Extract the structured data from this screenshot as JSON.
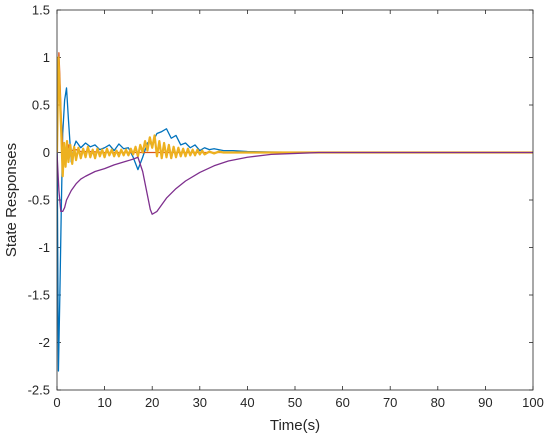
{
  "chart_data": {
    "type": "line",
    "title": "",
    "xlabel": "Time(s)",
    "ylabel": "State Responses",
    "xlim": [
      0,
      100
    ],
    "ylim": [
      -2.5,
      1.5
    ],
    "xticks": [
      0,
      10,
      20,
      30,
      40,
      50,
      60,
      70,
      80,
      90,
      100
    ],
    "yticks": [
      -2.5,
      -2,
      -1.5,
      -1,
      -0.5,
      0,
      0.5,
      1,
      1.5
    ],
    "xtick_labels": [
      "0",
      "10",
      "20",
      "30",
      "40",
      "50",
      "60",
      "70",
      "80",
      "90",
      "100"
    ],
    "ytick_labels": [
      "-2.5",
      "-2",
      "-1.5",
      "-1",
      "-0.5",
      "0",
      "0.5",
      "1",
      "1.5"
    ],
    "grid": false,
    "legend": "none",
    "series": [
      {
        "color": "#0072BD",
        "x": [
          0,
          0.3,
          0.6,
          0.9,
          1.2,
          1.6,
          2.0,
          2.4,
          3.0,
          3.5,
          4.0,
          5.0,
          6.0,
          7.0,
          8.0,
          9.0,
          10.0,
          11.0,
          12.0,
          13.0,
          14.0,
          15.0,
          16.0,
          17.0,
          18.0,
          19.0,
          19.5,
          20.0,
          20.5,
          21.0,
          22.0,
          23.0,
          24.0,
          25.0,
          26.0,
          27.0,
          28.0,
          29.0,
          30.0,
          31.0,
          32.0,
          33.0,
          35.0,
          37.0,
          40.0,
          45.0,
          50.0,
          55.0,
          60.0,
          100.0
        ],
        "y": [
          0.3,
          -2.3,
          -1.5,
          -0.6,
          0.2,
          0.55,
          0.68,
          0.35,
          -0.1,
          0.05,
          0.12,
          0.05,
          0.1,
          0.06,
          0.08,
          0.03,
          0.05,
          0.08,
          0.02,
          0.09,
          0.04,
          0.05,
          -0.05,
          -0.18,
          -0.05,
          0.1,
          0.12,
          0.05,
          0.15,
          0.2,
          0.22,
          0.25,
          0.15,
          0.18,
          0.08,
          0.1,
          0.05,
          0.08,
          0.02,
          0.05,
          0.03,
          0.04,
          0.02,
          0.02,
          0.01,
          0.005,
          0.002,
          0.0,
          0.0,
          0.0
        ]
      },
      {
        "color": "#D95319",
        "x": [
          0,
          0.2,
          0.4,
          0.6,
          0.9,
          1.2,
          1.5,
          2.0,
          2.5,
          3.0,
          4.0,
          5.0,
          7.0,
          10.0,
          15.0,
          20.0,
          30.0,
          40.0,
          50.0,
          60.0,
          100.0
        ],
        "y": [
          0.0,
          0.55,
          1.05,
          0.8,
          0.35,
          0.05,
          -0.12,
          -0.05,
          0.08,
          0.02,
          0.03,
          0.01,
          0.01,
          0.0,
          0.0,
          0.0,
          0.0,
          0.0,
          0.0,
          0.0,
          0.0
        ]
      },
      {
        "color": "#EDB120",
        "x": [
          0,
          0.3,
          0.6,
          0.9,
          1.2,
          1.5,
          1.8,
          2.1,
          2.4,
          2.8,
          3.2,
          3.6,
          4.0,
          4.5,
          5.0,
          5.5,
          6.0,
          6.5,
          7.0,
          7.5,
          8.0,
          8.5,
          9.0,
          9.5,
          10.0,
          10.5,
          11.0,
          11.5,
          12.0,
          12.5,
          13.0,
          13.5,
          14.0,
          14.5,
          15.0,
          15.5,
          16.0,
          16.5,
          17.0,
          17.5,
          18.0,
          18.5,
          19.0,
          19.5,
          20.0,
          20.5,
          21.0,
          21.5,
          22.0,
          22.5,
          23.0,
          23.5,
          24.0,
          24.5,
          25.0,
          25.5,
          26.0,
          26.5,
          27.0,
          27.5,
          28.0,
          28.5,
          29.0,
          29.5,
          30.0,
          30.5,
          31.0,
          32.0,
          33.0,
          34.0,
          35.0,
          36.0,
          38.0,
          40.0,
          45.0,
          50.0,
          60.0,
          100.0
        ],
        "y": [
          0.0,
          1.0,
          0.6,
          0.2,
          -0.25,
          0.1,
          -0.15,
          0.12,
          -0.1,
          0.08,
          -0.12,
          0.06,
          -0.08,
          0.05,
          -0.06,
          0.04,
          -0.05,
          0.06,
          -0.05,
          0.03,
          -0.06,
          0.04,
          -0.04,
          0.03,
          -0.05,
          0.04,
          -0.03,
          0.03,
          -0.04,
          0.02,
          -0.04,
          0.03,
          -0.03,
          0.03,
          -0.03,
          0.04,
          -0.02,
          0.06,
          -0.04,
          0.08,
          0.0,
          0.12,
          0.02,
          0.16,
          0.05,
          0.18,
          -0.04,
          0.12,
          -0.06,
          0.1,
          -0.05,
          0.08,
          -0.06,
          0.06,
          -0.05,
          0.05,
          -0.04,
          0.04,
          -0.04,
          0.04,
          -0.03,
          0.03,
          -0.03,
          0.03,
          -0.02,
          0.02,
          -0.02,
          0.01,
          -0.01,
          0.01,
          0.0,
          0.0,
          0.0,
          0.0,
          0.0,
          0.0,
          0.0,
          0.0
        ]
      },
      {
        "color": "#7E2F8E",
        "x": [
          0,
          0.4,
          0.8,
          1.2,
          1.6,
          2.0,
          2.5,
          3.0,
          4.0,
          5.0,
          6.0,
          8.0,
          10.0,
          12.0,
          14.0,
          16.0,
          17.0,
          18.0,
          19.0,
          19.6,
          20.0,
          21.0,
          22.0,
          23.0,
          25.0,
          27.0,
          30.0,
          33.0,
          36.0,
          40.0,
          45.0,
          50.0,
          55.0,
          60.0,
          70.0,
          100.0
        ],
        "y": [
          0.0,
          -0.4,
          -0.62,
          -0.62,
          -0.58,
          -0.5,
          -0.45,
          -0.4,
          -0.33,
          -0.28,
          -0.25,
          -0.2,
          -0.17,
          -0.13,
          -0.1,
          -0.07,
          -0.05,
          -0.2,
          -0.45,
          -0.6,
          -0.65,
          -0.62,
          -0.55,
          -0.48,
          -0.38,
          -0.3,
          -0.21,
          -0.14,
          -0.09,
          -0.05,
          -0.02,
          -0.01,
          0.0,
          0.0,
          0.0,
          0.0
        ]
      }
    ]
  }
}
